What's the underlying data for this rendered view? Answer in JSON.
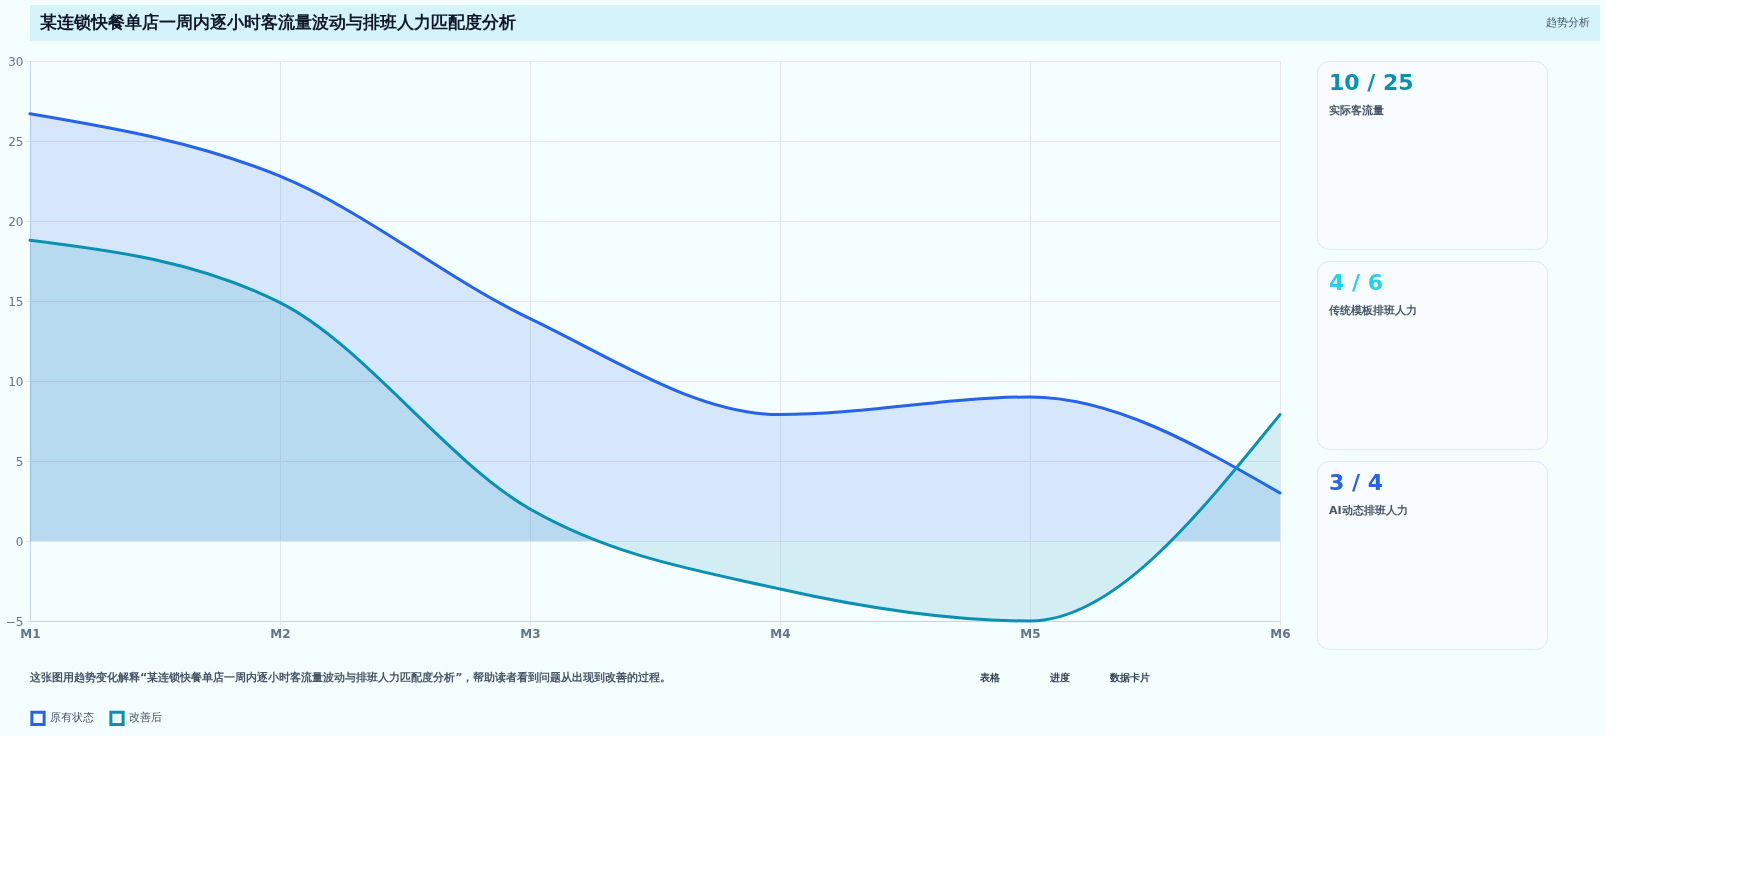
{
  "chart_data": [
    {
      "type": "area",
      "title": "某连锁快餐单店一周内逐小时客流量波动与排班人力匹配度分析",
      "categories": [
        "M1",
        "M2",
        "M3",
        "M4",
        "M5",
        "M6"
      ],
      "series": [
        {
          "name": "原有状态",
          "color": "#2563eb",
          "values": [
            26.7,
            22.8,
            13.9,
            7.9,
            9.0,
            3.0
          ]
        },
        {
          "name": "改善后",
          "color": "#0891b2",
          "values": [
            18.8,
            14.9,
            2.0,
            -3.0,
            -5.0,
            7.9
          ]
        }
      ],
      "ylim": [
        -5,
        30
      ],
      "yticks": [
        -5,
        0,
        5,
        10,
        15,
        20,
        25,
        30
      ],
      "grid": true,
      "legend": "bottom",
      "annotations": [
        "趋势分析",
        "这张图用趋势变化解释“某连锁快餐单店一周内逐小时客流量波动与排班人力匹配度分析”，帮助读者看到问题从出现到改善的过程。",
        "表格",
        "进度",
        "数据卡片"
      ]
    },
    {
      "type": "other",
      "annotations": [
        "10 / 25",
        "实际客流量",
        "4 / 6",
        "传统模板排班人力",
        "3 / 4",
        "AI动态排班人力"
      ],
      "colors": [
        "#0891b2",
        "#22d3ee",
        "#2563eb"
      ]
    }
  ]
}
